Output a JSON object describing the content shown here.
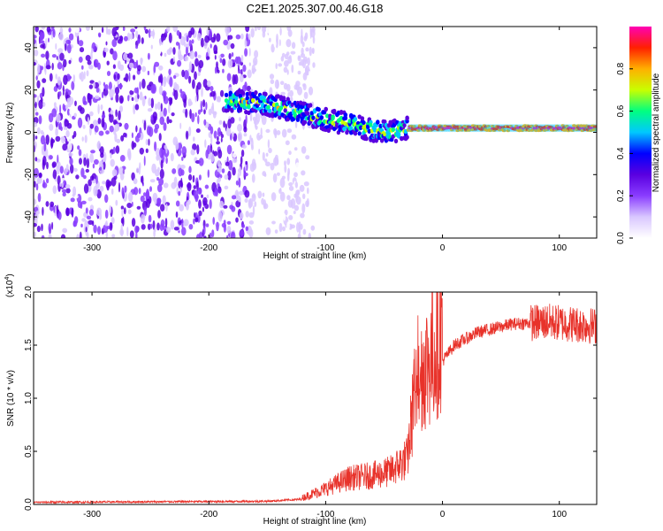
{
  "title": "C2E1.2025.307.00.46.G18",
  "chart_data": [
    {
      "type": "heatmap",
      "name": "spectrogram",
      "xlabel": "Height of straight line (km)",
      "ylabel": "Frequency (Hz)",
      "xlim": [
        -350,
        132
      ],
      "ylim": [
        -50,
        50
      ],
      "xticks": [
        -300,
        -200,
        -100,
        0,
        100
      ],
      "yticks": [
        -40,
        -20,
        0,
        20,
        40
      ],
      "colorbar": {
        "label": "Normalized spectral amplitude",
        "range": [
          0,
          1
        ],
        "ticks": [
          "0.0",
          "0.2",
          "0.4",
          "0.6",
          "0.8"
        ],
        "colors": [
          "#ffffff",
          "#d9c7ff",
          "#8a3dff",
          "#5a00e0",
          "#0000ff",
          "#00c8ff",
          "#00ff80",
          "#c8ff00",
          "#ffb000",
          "#ff2000",
          "#ff00b4"
        ]
      },
      "ridge": {
        "x": [
          -185,
          -160,
          -140,
          -120,
          -100,
          -80,
          -60,
          -45,
          -30,
          -15,
          0,
          40,
          80,
          132
        ],
        "freq": [
          15,
          14,
          12,
          9,
          6,
          4,
          1,
          0,
          2,
          2,
          2,
          2,
          2,
          2
        ]
      }
    },
    {
      "type": "line",
      "name": "snr",
      "xlabel": "Height of straight line (km)",
      "ylabel": "SNR (10 * v/v)",
      "scale_label": "(x10",
      "scale_exp": "4",
      "scale_close": ")",
      "xlim": [
        -350,
        132
      ],
      "ylim": [
        0,
        2.0
      ],
      "xticks": [
        -300,
        -200,
        -100,
        0,
        100
      ],
      "yticks": [
        "0.0",
        "0.5",
        "1.0",
        "1.5",
        "2.0"
      ],
      "color": "#e8322a",
      "envelope": {
        "x": [
          -350,
          -150,
          -120,
          -100,
          -80,
          -60,
          -45,
          -30,
          -22,
          -10,
          0,
          10,
          30,
          60,
          90,
          110,
          132
        ],
        "y": [
          0.02,
          0.03,
          0.05,
          0.12,
          0.2,
          0.22,
          0.25,
          0.35,
          1.0,
          1.1,
          1.35,
          1.5,
          1.62,
          1.7,
          1.72,
          1.7,
          1.68
        ]
      }
    }
  ]
}
